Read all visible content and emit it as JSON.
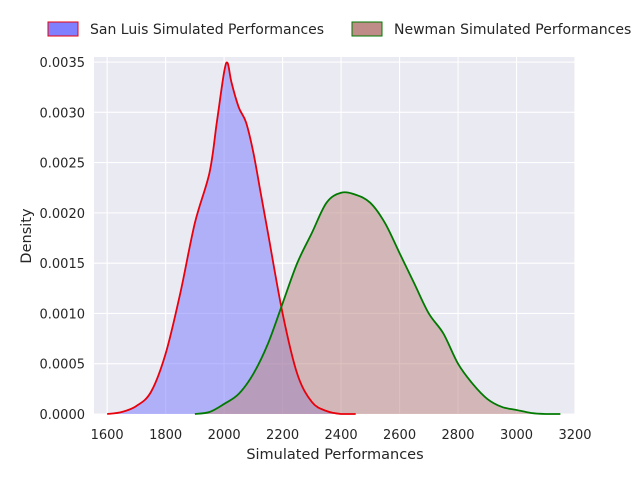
{
  "chart_data": {
    "type": "area",
    "title": "",
    "xlabel": "Simulated Performances",
    "ylabel": "Density",
    "xlim": [
      1555,
      3200
    ],
    "ylim": [
      0,
      0.00355
    ],
    "xticks": [
      1600,
      1800,
      2000,
      2200,
      2400,
      2600,
      2800,
      3000,
      3200
    ],
    "yticks": [
      0.0,
      0.0005,
      0.001,
      0.0015,
      0.002,
      0.0025,
      0.003,
      0.0035
    ],
    "ytick_labels": [
      "0.0000",
      "0.0005",
      "0.0010",
      "0.0015",
      "0.0020",
      "0.0025",
      "0.0030",
      "0.0035"
    ],
    "grid": true,
    "legend_position": "top, outside plot, two columns",
    "series": [
      {
        "name": "San Luis Simulated Performances",
        "line_color": "#e8000b",
        "fill_color": "#8080ff",
        "x": [
          1600,
          1650,
          1700,
          1750,
          1800,
          1850,
          1900,
          1950,
          1975,
          2000,
          2012,
          2025,
          2050,
          2075,
          2100,
          2125,
          2150,
          2200,
          2250,
          2300,
          2350,
          2400,
          2450
        ],
        "y": [
          0.0,
          2e-05,
          8e-05,
          0.00022,
          0.0006,
          0.0012,
          0.0019,
          0.0024,
          0.0029,
          0.0034,
          0.00349,
          0.0033,
          0.00305,
          0.0029,
          0.0026,
          0.0022,
          0.0018,
          0.001,
          0.0004,
          0.00012,
          3e-05,
          0.0,
          0.0
        ]
      },
      {
        "name": "Newman Simulated Performances",
        "line_color": "#007a00",
        "fill_color": "#c08c88",
        "x": [
          1900,
          1950,
          2000,
          2050,
          2100,
          2150,
          2200,
          2250,
          2300,
          2350,
          2400,
          2450,
          2500,
          2550,
          2600,
          2650,
          2700,
          2750,
          2800,
          2850,
          2900,
          2950,
          3000,
          3050,
          3100,
          3150
        ],
        "y": [
          0.0,
          2e-05,
          0.0001,
          0.0002,
          0.0004,
          0.0007,
          0.0011,
          0.0015,
          0.0018,
          0.0021,
          0.0022,
          0.00218,
          0.0021,
          0.0019,
          0.0016,
          0.0013,
          0.001,
          0.0008,
          0.0005,
          0.0003,
          0.00015,
          7e-05,
          4e-05,
          1e-05,
          0.0,
          0.0
        ]
      }
    ]
  }
}
